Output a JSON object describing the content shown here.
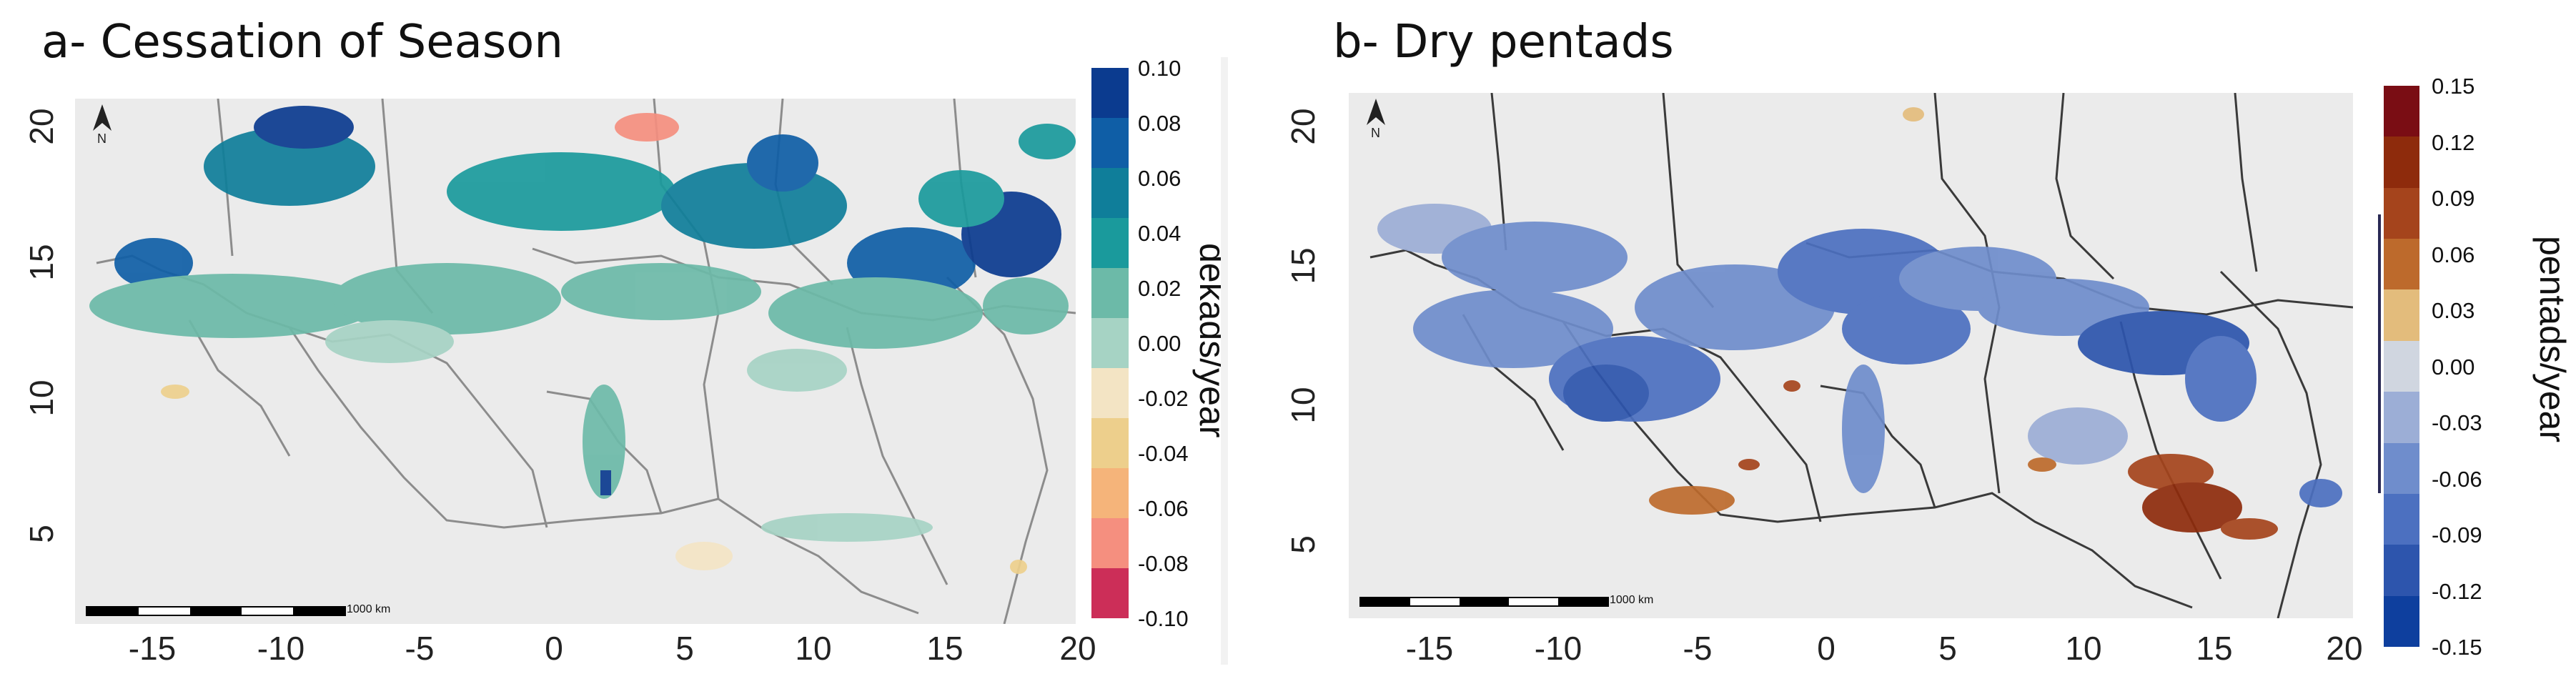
{
  "panels": [
    {
      "id": "a",
      "title": "a- Cessation of Season",
      "y_ticks": [
        "20",
        "15",
        "10",
        "5"
      ],
      "x_ticks": [
        "-15",
        "-10",
        "-5",
        "0",
        "5",
        "10",
        "15",
        "20"
      ],
      "scale_label": "1000 km",
      "north_label": "N",
      "unit_label": "dekads/year",
      "colorbar": {
        "labels": [
          "0.10",
          "0.08",
          "0.06",
          "0.04",
          "0.02",
          "0.00",
          "-0.02",
          "-0.04",
          "-0.06",
          "-0.08",
          "-0.10"
        ],
        "colors": [
          "#0b3b8f",
          "#0f5ea6",
          "#0f7e9a",
          "#1a9a9c",
          "#6cbaa8",
          "#a6d3c4",
          "#f3e4c4",
          "#edcf8c",
          "#f5b47a",
          "#f58f7f",
          "#cc2e58"
        ]
      }
    },
    {
      "id": "b",
      "title": "b- Dry pentads",
      "y_ticks": [
        "20",
        "15",
        "10",
        "5"
      ],
      "x_ticks": [
        "-15",
        "-10",
        "-5",
        "0",
        "5",
        "10",
        "15",
        "20"
      ],
      "scale_label": "1000 km",
      "north_label": "N",
      "unit_label": "pentads/year",
      "colorbar": {
        "labels": [
          "0.15",
          "0.12",
          "0.09",
          "0.06",
          "0.03",
          "0.00",
          "-0.03",
          "-0.06",
          "-0.09",
          "-0.12",
          "-0.15"
        ],
        "colors": [
          "#7a0d14",
          "#8e2b0c",
          "#a5441c",
          "#bd6a2c",
          "#e3bc7c",
          "#d0d6e0",
          "#9caed6",
          "#6f8dcc",
          "#4c70c0",
          "#2d55ad",
          "#0e3f9e"
        ]
      }
    }
  ]
}
